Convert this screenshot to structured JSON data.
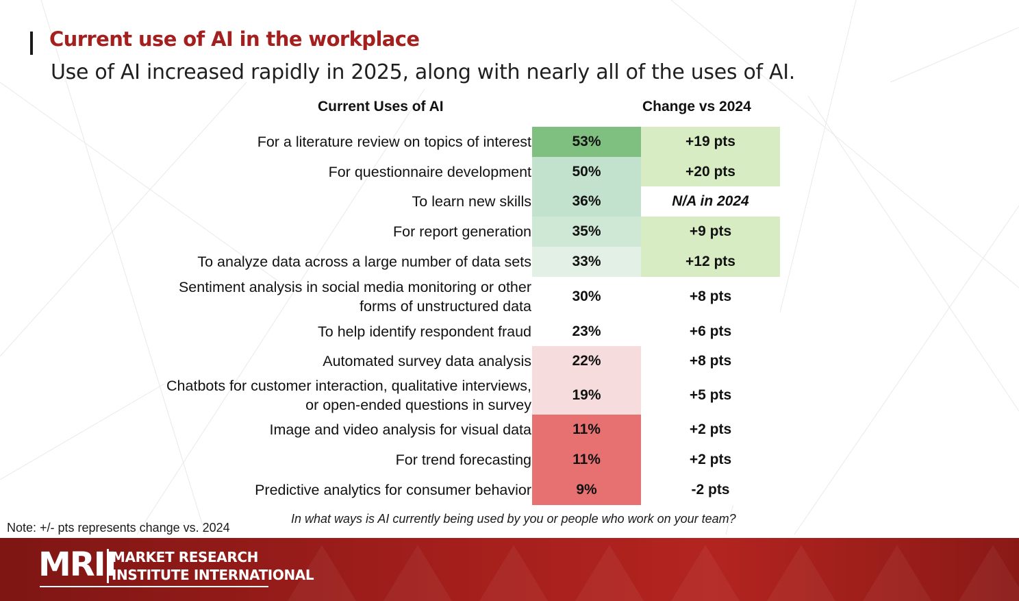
{
  "header": {
    "title": "Current use of AI in the workplace",
    "subtitle": "Use of AI increased rapidly in 2025, along with nearly all of the uses of AI."
  },
  "chart_data": {
    "type": "table",
    "columns": [
      "Current Uses of AI",
      "Change vs 2024"
    ],
    "rows": [
      {
        "label": "For a literature review on topics of interest",
        "value": 53,
        "display": "53%",
        "change": "+19 pts",
        "value_color": "#7fbf7f",
        "change_color": "#d8ecc3"
      },
      {
        "label": "For questionnaire development",
        "value": 50,
        "display": "50%",
        "change": "+20 pts",
        "value_color": "#c3e2cd",
        "change_color": "#d8ecc3"
      },
      {
        "label": "To learn new skills",
        "value": 36,
        "display": "36%",
        "change": "N/A in 2024",
        "value_color": "#c3e2cd",
        "change_color": "#ffffff"
      },
      {
        "label": "For report generation",
        "value": 35,
        "display": "35%",
        "change": "+9 pts",
        "value_color": "#cfe7d5",
        "change_color": "#d8ecc3"
      },
      {
        "label": "To analyze data across a large number of data sets",
        "value": 33,
        "display": "33%",
        "change": "+12 pts",
        "value_color": "#e2f0e6",
        "change_color": "#d8ecc3"
      },
      {
        "label": "Sentiment analysis in social media monitoring or other\nforms of unstructured data",
        "value": 30,
        "display": "30%",
        "change": "+8 pts",
        "value_color": "#ffffff",
        "change_color": "#ffffff"
      },
      {
        "label": "To help identify respondent fraud",
        "value": 23,
        "display": "23%",
        "change": "+6 pts",
        "value_color": "#ffffff",
        "change_color": "#ffffff"
      },
      {
        "label": "Automated survey data analysis",
        "value": 22,
        "display": "22%",
        "change": "+8 pts",
        "value_color": "#f6dcdc",
        "change_color": "#ffffff"
      },
      {
        "label": "Chatbots for customer interaction, qualitative interviews,\nor open-ended questions in survey",
        "value": 19,
        "display": "19%",
        "change": "+5 pts",
        "value_color": "#f6dcdc",
        "change_color": "#ffffff"
      },
      {
        "label": "Image and video analysis for visual data",
        "value": 11,
        "display": "11%",
        "change": "+2 pts",
        "value_color": "#e77171",
        "change_color": "#ffffff"
      },
      {
        "label": "For trend forecasting",
        "value": 11,
        "display": "11%",
        "change": "+2 pts",
        "value_color": "#e77171",
        "change_color": "#ffffff"
      },
      {
        "label": "Predictive analytics for consumer behavior",
        "value": 9,
        "display": "9%",
        "change": "-2 pts",
        "value_color": "#e77171",
        "change_color": "#ffffff"
      }
    ]
  },
  "question": "In what ways is AI currently being used by you or people who work on your team?",
  "note": "Note: +/- pts represents change vs. 2024",
  "logo": {
    "mark": "MRII",
    "line1": "MARKET RESEARCH",
    "line2": "INSTITUTE INTERNATIONAL"
  }
}
